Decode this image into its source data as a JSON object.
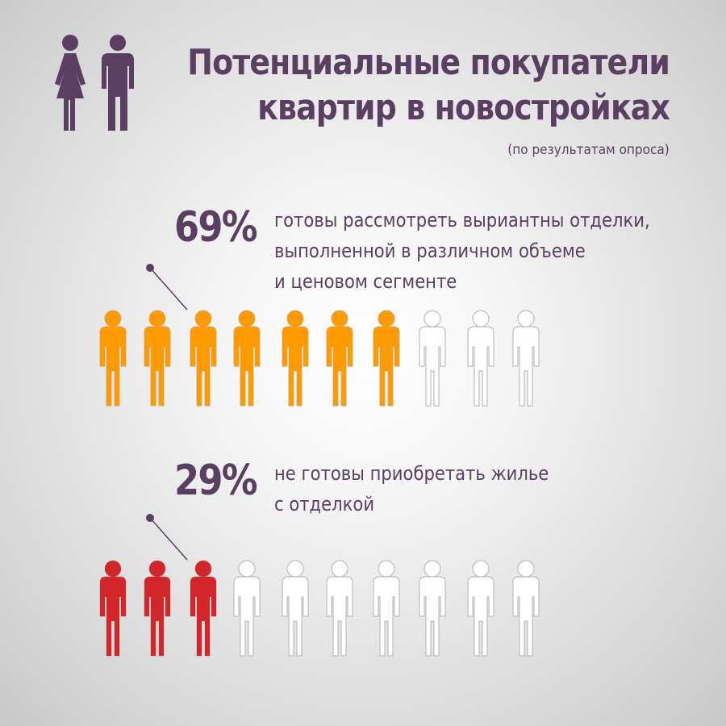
{
  "header": {
    "title_lines": [
      "Потенциальные покупатели",
      "квартир в новостройках"
    ],
    "subtitle": "(по результатам опроса)"
  },
  "colors": {
    "text": "#5a3f62",
    "orange": "#ff9a00",
    "red": "#d2262a",
    "empty_fill": "#ffffff",
    "empty_stroke": "#bdbdbd"
  },
  "icons": {
    "header": "man-and-woman-icon",
    "unit": "person-icon"
  },
  "chart_data": [
    {
      "type": "pictograph",
      "total_icons": 10,
      "value_percent": 69,
      "percent_label": "69%",
      "color": "#ff9a00",
      "description_lines": [
        "готовы рассмотреть выриантны отделки,",
        "выполненной в различном объеме",
        "и ценовом сегменте"
      ]
    },
    {
      "type": "pictograph",
      "total_icons": 10,
      "value_percent": 29,
      "percent_label": "29%",
      "color": "#d2262a",
      "description_lines": [
        "не готовы приобретать жилье",
        "с отделкой"
      ]
    }
  ]
}
